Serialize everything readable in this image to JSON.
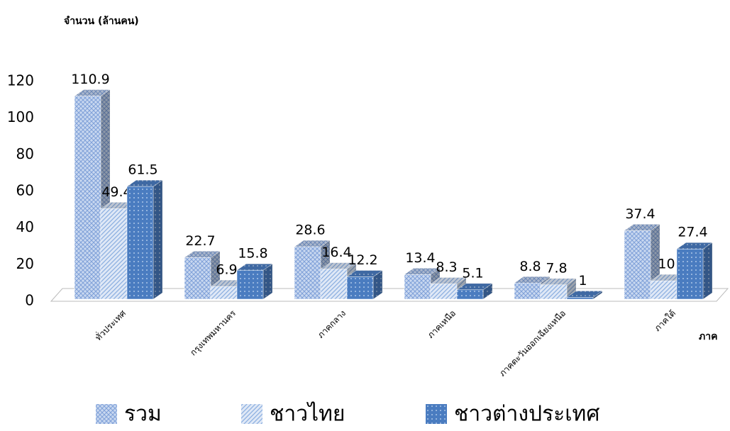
{
  "chart_data": {
    "type": "bar3d",
    "y_axis_label": "จำนวน (ล้านคน)",
    "x_axis_label": "ภาค",
    "categories": [
      "ทั่วประเทศ",
      "กรุงเทพมหานคร",
      "ภาคกลาง",
      "ภาคเหนือ",
      "ภาคตะวันออกเฉียงเหนือ",
      "ภาคใต้"
    ],
    "series": [
      {
        "name": "รวม",
        "color": "#c9d8f0",
        "values": [
          110.9,
          22.7,
          28.6,
          13.4,
          8.8,
          37.4
        ]
      },
      {
        "name": "ชาวไทย",
        "color": "#dfe8f6",
        "values": [
          49.4,
          6.9,
          16.4,
          8.3,
          7.8,
          10
        ]
      },
      {
        "name": "ชาวต่างประเทศ",
        "color": "#4a7cc0",
        "values": [
          61.5,
          15.8,
          12.2,
          5.1,
          1,
          27.4
        ]
      }
    ],
    "ylim": [
      0,
      120
    ],
    "yticks": [
      0,
      20,
      40,
      60,
      80,
      100,
      120
    ],
    "legend": "bottom"
  }
}
